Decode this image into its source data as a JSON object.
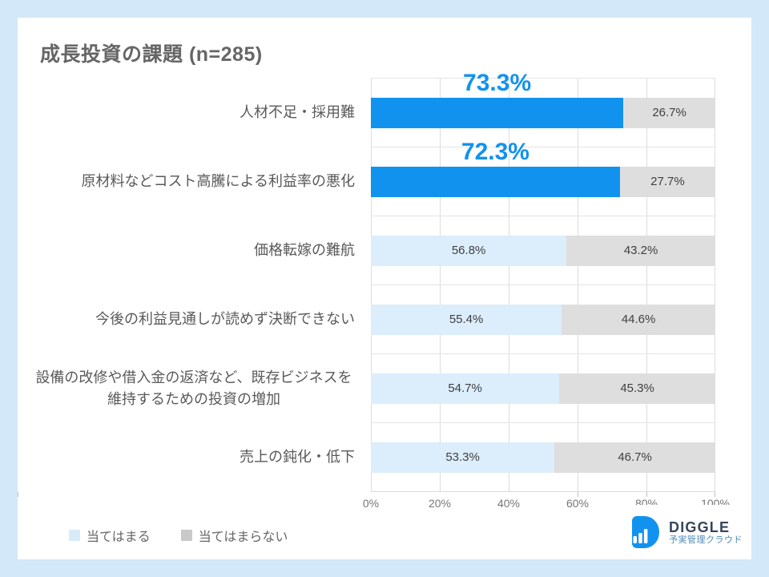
{
  "title": "成長投資の課題 (n=285)",
  "chart_data": {
    "type": "bar",
    "orientation": "horizontal",
    "stacked": true,
    "title": "成長投資の課題 (n=285)",
    "sample_size": "n=285",
    "categories": [
      "人材不足・採用難",
      "原材料などコスト高騰による利益率の悪化",
      "価格転嫁の難航",
      "今後の利益見通しが読めず決断できない",
      "設備の改修や借入金の返済など、既存ビジネスを維持するための投資の増加",
      "売上の鈍化・低下"
    ],
    "series": [
      {
        "name": "当てはまる",
        "values": [
          73.3,
          72.3,
          56.8,
          55.4,
          54.7,
          53.3
        ]
      },
      {
        "name": "当てはまらない",
        "values": [
          26.7,
          27.7,
          43.2,
          44.6,
          45.3,
          46.7
        ]
      }
    ],
    "highlighted_indices": [
      0,
      1
    ],
    "x_ticks": [
      "0%",
      "20%",
      "40%",
      "60%",
      "80%",
      "100%"
    ],
    "xlim": [
      0,
      100
    ],
    "grid": true,
    "legend_position": "bottom-left",
    "colors": {
      "applies_highlight": "#1292ef",
      "applies_normal": "#dcedfb",
      "not_applies": "#dedede",
      "highlight_value_text": "#1292ef",
      "background": "#d3e8f8",
      "card": "#ffffff"
    }
  },
  "rows": [
    {
      "applies_label": "73.3%",
      "not_applies_label": "26.7%",
      "highlighted": true
    },
    {
      "applies_label": "72.3%",
      "not_applies_label": "27.7%",
      "highlighted": true
    },
    {
      "applies_label": "56.8%",
      "not_applies_label": "43.2%",
      "highlighted": false
    },
    {
      "applies_label": "55.4%",
      "not_applies_label": "44.6%",
      "highlighted": false
    },
    {
      "applies_label": "54.7%",
      "not_applies_label": "45.3%",
      "highlighted": false
    },
    {
      "applies_label": "53.3%",
      "not_applies_label": "46.7%",
      "highlighted": false
    }
  ],
  "legend": {
    "items": [
      {
        "label": "当てはまる",
        "color": "#d9ebf9"
      },
      {
        "label": "当てはまらない",
        "color": "#c9c9c9"
      }
    ]
  },
  "logo": {
    "name": "DIGGLE",
    "tagline": "予実管理クラウド"
  }
}
